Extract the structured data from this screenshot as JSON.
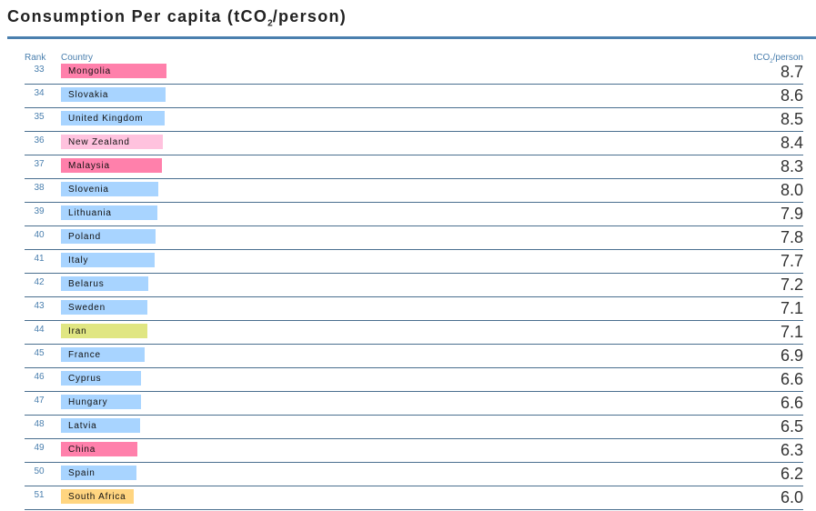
{
  "chart_data": {
    "type": "bar",
    "title": "Consumption Per capita (tCO",
    "title_sub": "2",
    "title_end": "/person)",
    "col_rank": "Rank",
    "col_country": "Country",
    "col_unit": "tCO",
    "col_unit_sub": "2",
    "col_unit_end": "/person",
    "rows": [
      {
        "rank": "33",
        "country": "Mongolia",
        "value": "8.7",
        "color": "#ff80ab"
      },
      {
        "rank": "34",
        "country": "Slovakia",
        "value": "8.6",
        "color": "#a8d4ff"
      },
      {
        "rank": "35",
        "country": "United Kingdom",
        "value": "8.5",
        "color": "#a8d4ff"
      },
      {
        "rank": "36",
        "country": "New Zealand",
        "value": "8.4",
        "color": "#ffc2de"
      },
      {
        "rank": "37",
        "country": "Malaysia",
        "value": "8.3",
        "color": "#ff80ab"
      },
      {
        "rank": "38",
        "country": "Slovenia",
        "value": "8.0",
        "color": "#a8d4ff"
      },
      {
        "rank": "39",
        "country": "Lithuania",
        "value": "7.9",
        "color": "#a8d4ff"
      },
      {
        "rank": "40",
        "country": "Poland",
        "value": "7.8",
        "color": "#a8d4ff"
      },
      {
        "rank": "41",
        "country": "Italy",
        "value": "7.7",
        "color": "#a8d4ff"
      },
      {
        "rank": "42",
        "country": "Belarus",
        "value": "7.2",
        "color": "#a8d4ff"
      },
      {
        "rank": "43",
        "country": "Sweden",
        "value": "7.1",
        "color": "#a8d4ff"
      },
      {
        "rank": "44",
        "country": "Iran",
        "value": "7.1",
        "color": "#e0e682"
      },
      {
        "rank": "45",
        "country": "France",
        "value": "6.9",
        "color": "#a8d4ff"
      },
      {
        "rank": "46",
        "country": "Cyprus",
        "value": "6.6",
        "color": "#a8d4ff"
      },
      {
        "rank": "47",
        "country": "Hungary",
        "value": "6.6",
        "color": "#a8d4ff"
      },
      {
        "rank": "48",
        "country": "Latvia",
        "value": "6.5",
        "color": "#a8d4ff"
      },
      {
        "rank": "49",
        "country": "China",
        "value": "6.3",
        "color": "#ff80ab"
      },
      {
        "rank": "50",
        "country": "Spain",
        "value": "6.2",
        "color": "#a8d4ff"
      },
      {
        "rank": "51",
        "country": "South Africa",
        "value": "6.0",
        "color": "#ffd580"
      }
    ]
  }
}
